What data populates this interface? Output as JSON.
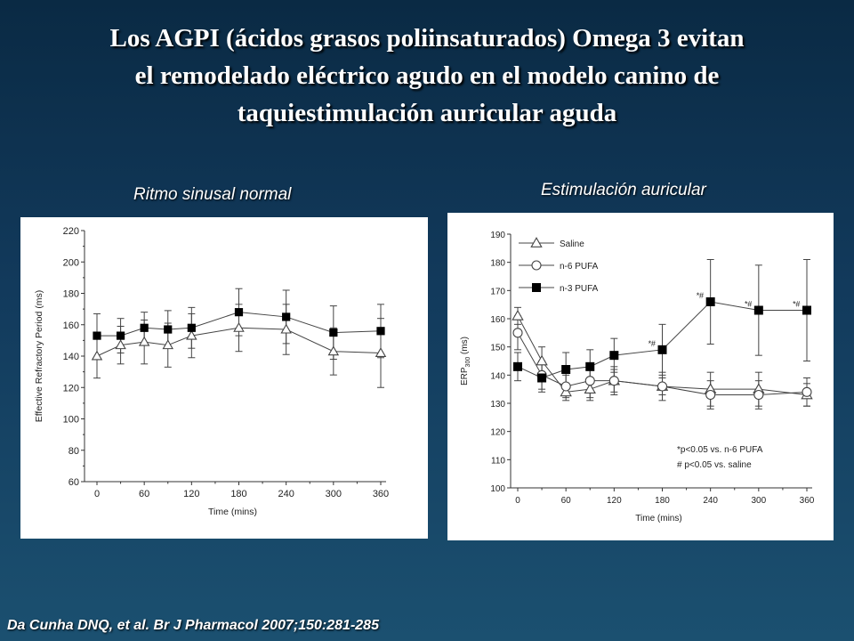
{
  "slide": {
    "title": "Los AGPI (ácidos grasos poliinsaturados) Omega 3 evitan el remodelado eléctrico agudo en el modelo canino de taquiestimulación auricular aguda",
    "title_lines": [
      "Los AGPI (ácidos grasos poliinsaturados) Omega 3 evitan",
      "el remodelado eléctrico agudo en el modelo canino de",
      "taquiestimulación auricular aguda"
    ],
    "left_label": "Ritmo sinusal normal",
    "right_label": "Estimulación auricular",
    "citation": "Da Cunha DNQ, et al.  Br J Pharmacol 2007;150:281-285",
    "text_color": "#ffffff",
    "background_top": "#0a2a44",
    "background_bottom": "#1b5070"
  },
  "chart_data": [
    {
      "type": "line",
      "xlabel": "Time (mins)",
      "ylabel": "Effective Refractory Period (ms)",
      "xlim": [
        0,
        360
      ],
      "ylim": [
        60,
        220
      ],
      "xticks": [
        "0",
        "60",
        "120",
        "180",
        "240",
        "300",
        "360"
      ],
      "xtick_values": [
        0,
        60,
        120,
        180,
        240,
        300,
        360
      ],
      "yticks": [
        "60",
        "80",
        "100",
        "120",
        "140",
        "160",
        "180",
        "200",
        "220"
      ],
      "ytick_values": [
        60,
        80,
        100,
        120,
        140,
        160,
        180,
        200,
        220
      ],
      "grid": false,
      "x": [
        0,
        30,
        60,
        90,
        120,
        180,
        240,
        300,
        360
      ],
      "series": [
        {
          "marker": "triangle-open",
          "values": [
            140,
            147,
            149,
            147,
            153,
            158,
            157,
            143,
            142
          ],
          "errors": [
            14,
            12,
            14,
            14,
            14,
            15,
            16,
            15,
            22
          ]
        },
        {
          "marker": "square-filled",
          "values": [
            153,
            153,
            158,
            157,
            158,
            168,
            165,
            155,
            156
          ],
          "errors": [
            14,
            11,
            10,
            12,
            13,
            15,
            17,
            17,
            17
          ]
        }
      ]
    },
    {
      "type": "line",
      "xlabel": "Time (mins)",
      "ylabel": "ERP",
      "ylabel_subscript": "300",
      "ylabel_unit": "(ms)",
      "xlim": [
        0,
        360
      ],
      "ylim": [
        100,
        190
      ],
      "xticks": [
        "0",
        "60",
        "120",
        "180",
        "240",
        "300",
        "360"
      ],
      "xtick_values": [
        0,
        60,
        120,
        180,
        240,
        300,
        360
      ],
      "yticks": [
        "100",
        "110",
        "120",
        "130",
        "140",
        "150",
        "160",
        "170",
        "180",
        "190"
      ],
      "ytick_values": [
        100,
        110,
        120,
        130,
        140,
        150,
        160,
        170,
        180,
        190
      ],
      "grid": false,
      "legend_position": "top-left",
      "x": [
        0,
        30,
        60,
        90,
        120,
        180,
        240,
        300,
        360
      ],
      "series": [
        {
          "name": "Saline",
          "marker": "triangle-open",
          "values": [
            161,
            145,
            134,
            135,
            138,
            136,
            135,
            135,
            133
          ],
          "errors": [
            3,
            5,
            3,
            4,
            4,
            3,
            6,
            6,
            4
          ]
        },
        {
          "name": "n-6 PUFA",
          "marker": "circle-open",
          "values": [
            155,
            140,
            136,
            138,
            138,
            136,
            133,
            133,
            134
          ],
          "errors": [
            6,
            5,
            4,
            6,
            5,
            5,
            5,
            5,
            5
          ]
        },
        {
          "name": "n-3 PUFA",
          "marker": "square-filled",
          "values": [
            143,
            139,
            142,
            143,
            147,
            149,
            166,
            163,
            163
          ],
          "errors": [
            5,
            5,
            6,
            6,
            6,
            9,
            15,
            16,
            18
          ]
        }
      ],
      "point_annotations": [
        {
          "x": 180,
          "value": 149,
          "text": "*#"
        },
        {
          "x": 240,
          "value": 166,
          "text": "*#"
        },
        {
          "x": 300,
          "value": 163,
          "text": "*#"
        },
        {
          "x": 360,
          "value": 163,
          "text": "*#"
        }
      ],
      "notes": [
        "*p<0.05 vs. n-6 PUFA",
        "# p<0.05 vs. saline"
      ]
    }
  ]
}
